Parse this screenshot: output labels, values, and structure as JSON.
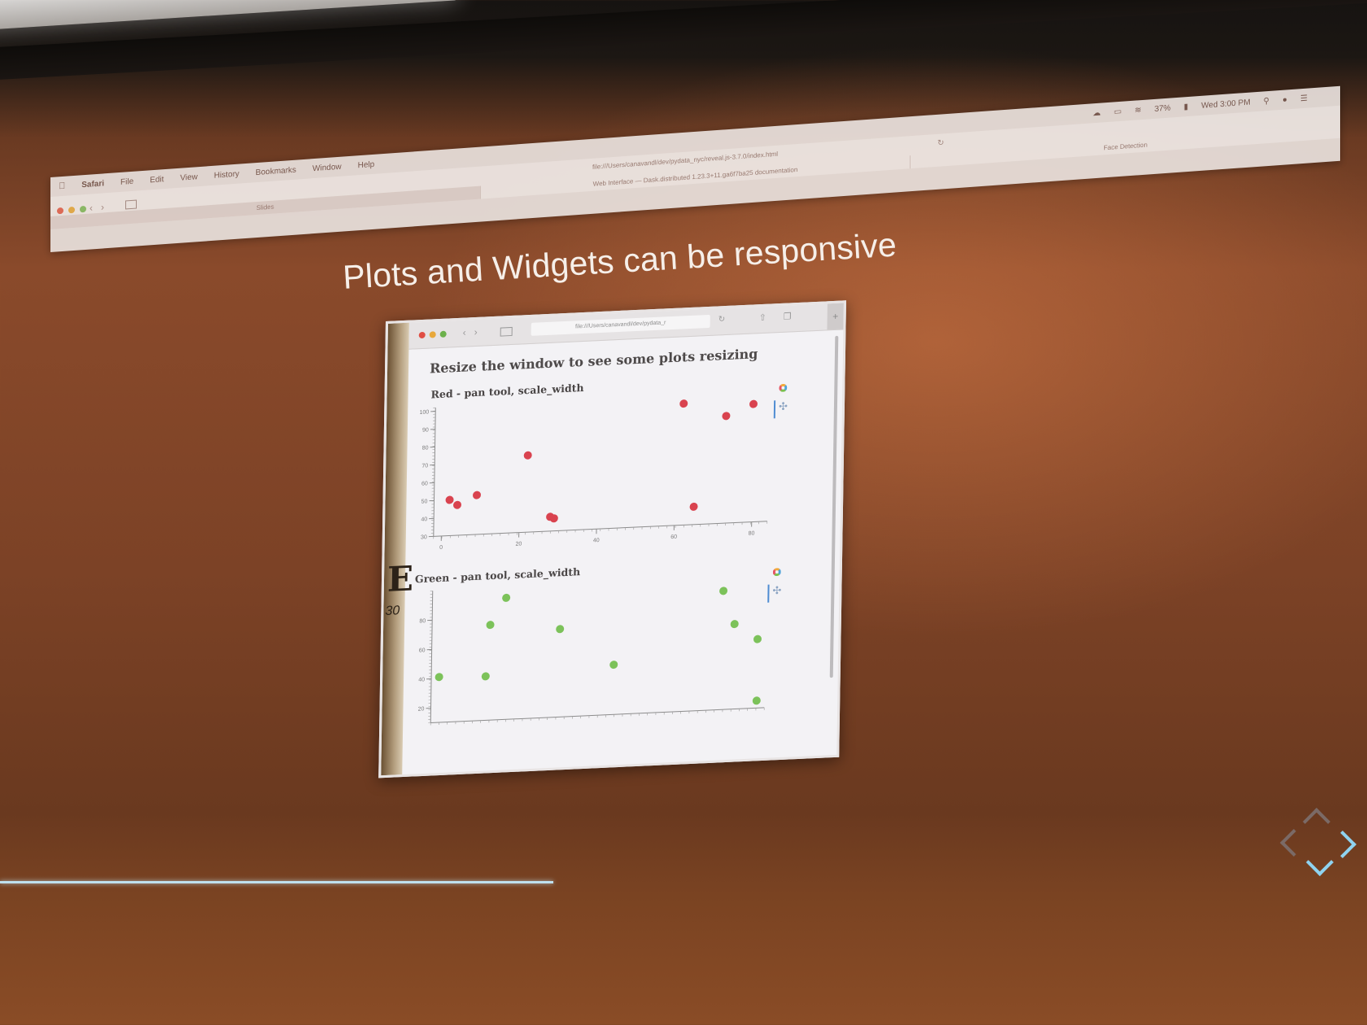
{
  "browser": {
    "menu": [
      "Safari",
      "File",
      "Edit",
      "View",
      "History",
      "Bookmarks",
      "Window",
      "Help"
    ],
    "status": {
      "battery": "37%",
      "clock": "Wed 3:00 PM"
    },
    "url": "file:///Users/canavandl/dev/pydata_nyc/reveal.js-3.7.0/index.html",
    "tabs": [
      "Slides",
      "Web Interface — Dask.distributed 1.23.3+11.ga6f7ba25 documentation",
      "Face Detection"
    ]
  },
  "slide": {
    "title": "Plots and Widgets can be responsive"
  },
  "embedded": {
    "url": "file:///Users/canavandl/dev/pydata_r",
    "heading": "Resize the window to see some plots resizing"
  },
  "chart_data": [
    {
      "type": "scatter",
      "title": "Red - pan tool, scale_width",
      "color": "#d9434f",
      "xlim": [
        -2,
        84
      ],
      "ylim": [
        30,
        102
      ],
      "xticks": [
        0,
        20,
        40,
        60,
        80
      ],
      "yticks": [
        30,
        40,
        50,
        60,
        70,
        80,
        90,
        100
      ],
      "x": [
        2,
        4,
        9,
        22,
        28,
        29,
        62,
        65,
        73,
        80
      ],
      "y": [
        50,
        47,
        52,
        73,
        38,
        37,
        98,
        40,
        90,
        96
      ]
    },
    {
      "type": "scatter",
      "title": "Green - pan tool, scale_width",
      "color": "#7cc25a",
      "xlim": [
        -2,
        84
      ],
      "ylim": [
        10,
        100
      ],
      "yticks": [
        20,
        40,
        60,
        80
      ],
      "x": [
        0,
        12,
        13,
        17,
        31,
        45,
        73,
        76,
        82,
        82
      ],
      "y": [
        41,
        40,
        75,
        93,
        70,
        44,
        91,
        68,
        57,
        15
      ]
    }
  ]
}
